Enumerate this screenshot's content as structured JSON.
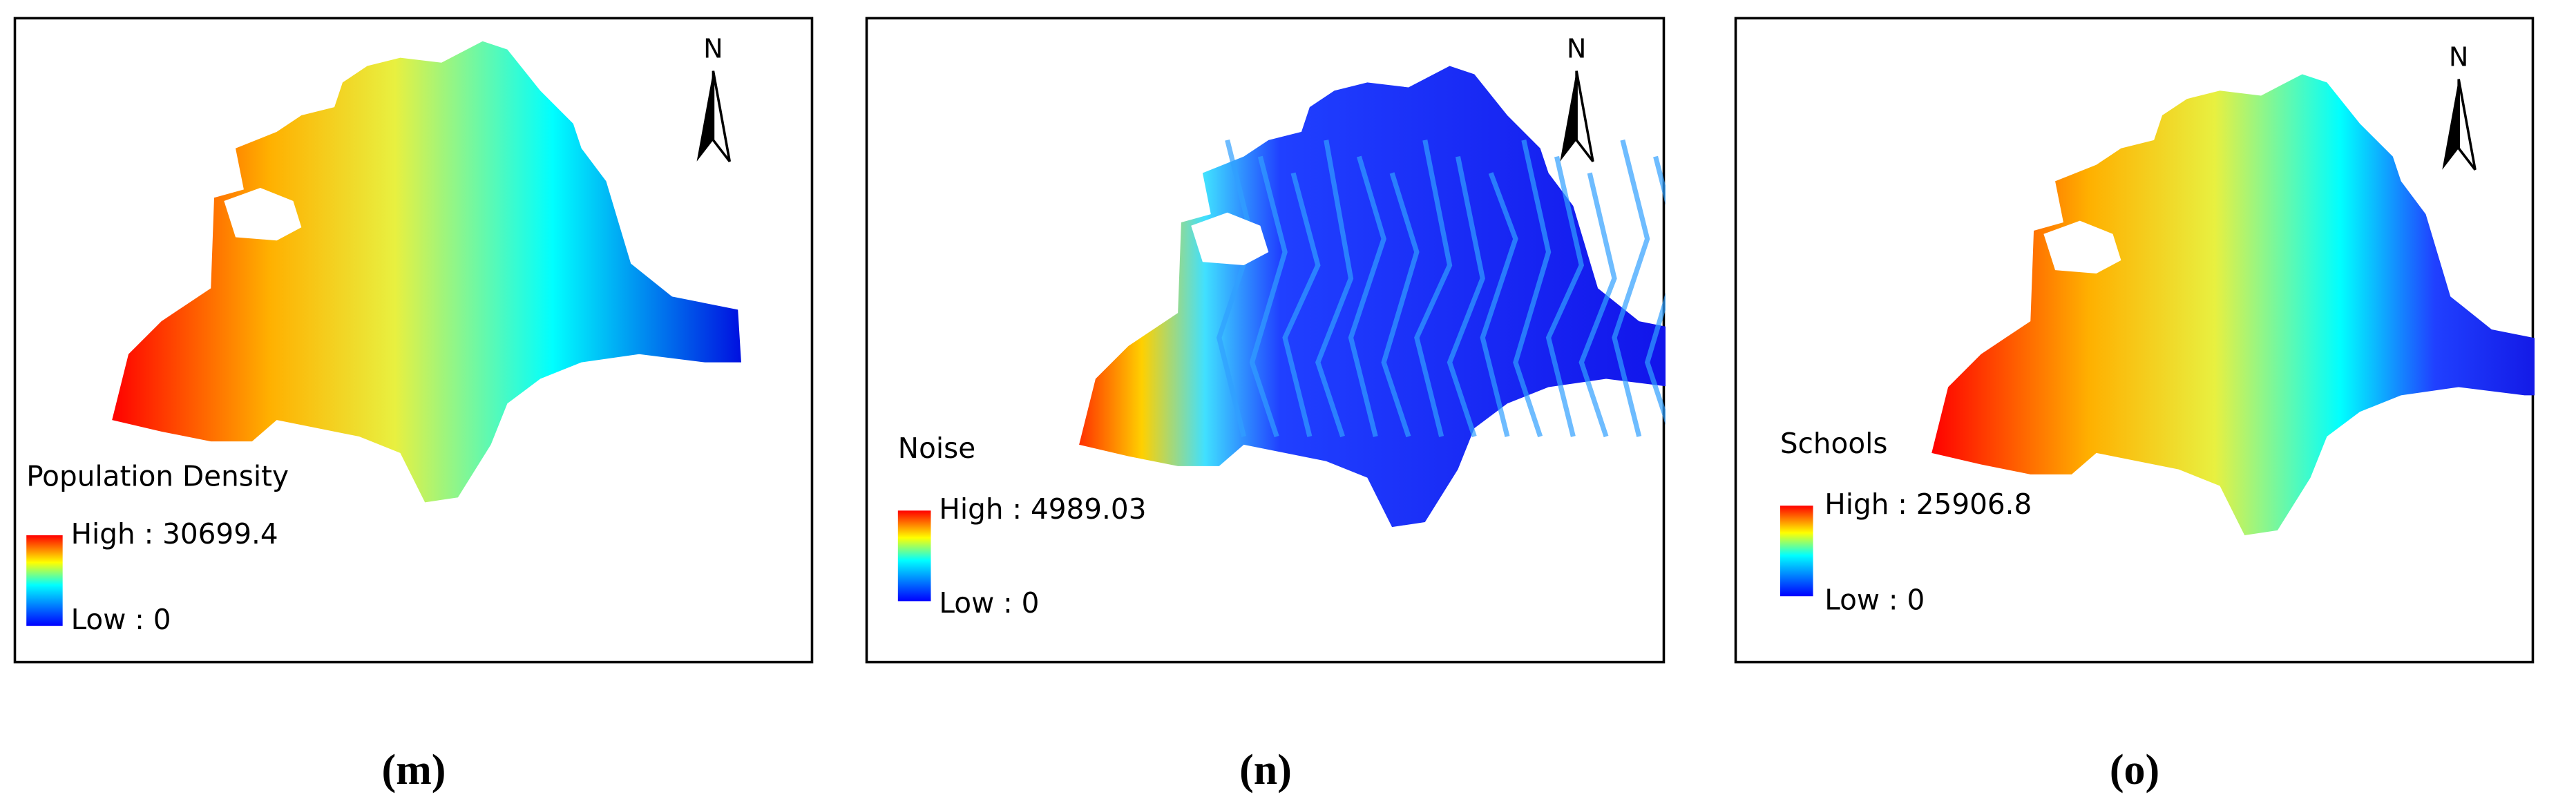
{
  "panels": [
    {
      "label": "(m)",
      "legend_title": "Population Density",
      "high": "High : 30699.4",
      "low": "Low : 0",
      "north": "N"
    },
    {
      "label": "(n)",
      "legend_title": "Noise",
      "high": "High : 4989.03",
      "low": "Low : 0",
      "north": "N"
    },
    {
      "label": "(o)",
      "legend_title": "Schools",
      "high": "High : 25906.8",
      "low": "Low : 0",
      "north": "N"
    }
  ]
}
